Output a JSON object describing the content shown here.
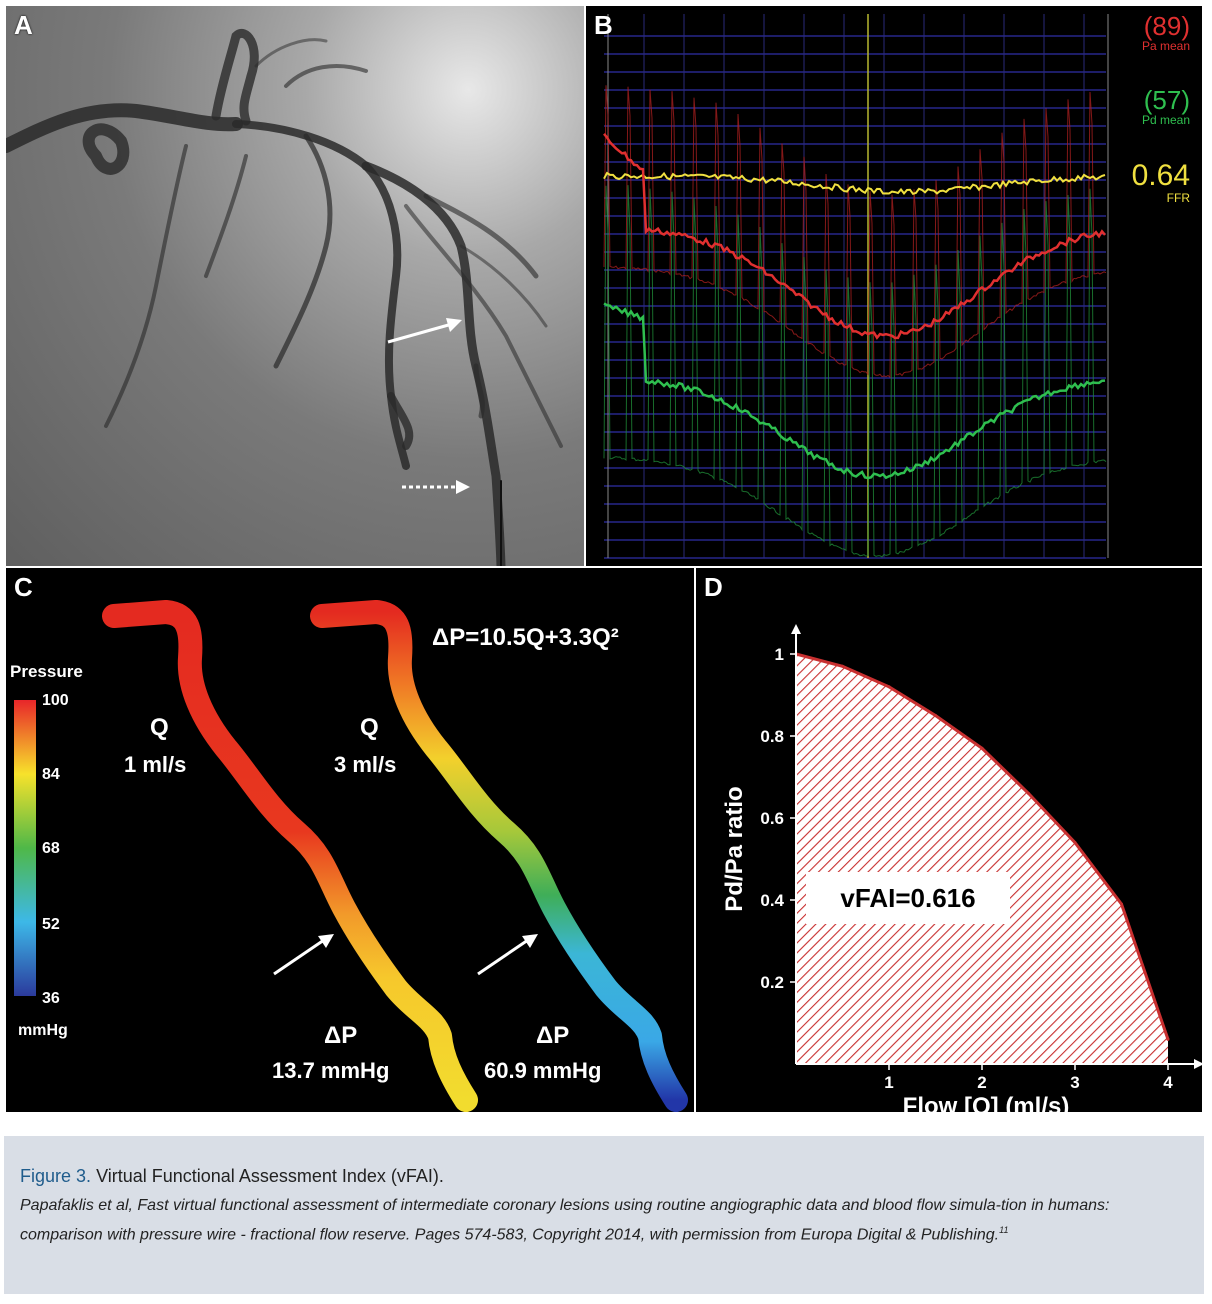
{
  "figure": {
    "panels": {
      "a": {
        "label": "A"
      },
      "b": {
        "label": "B",
        "pa_value": "(89)",
        "pa_label": "Pa mean",
        "pd_value": "(57)",
        "pd_label": "Pd mean",
        "ffr_value": "0.64",
        "ffr_label": "FFR",
        "colors": {
          "pa": "#e03030",
          "pd": "#2fbf4f",
          "ffr": "#f0e040",
          "grid": "#3a3ad0"
        }
      },
      "c": {
        "label": "C",
        "legend_title": "Pressure",
        "legend_ticks": [
          "100",
          "84",
          "68",
          "52",
          "36"
        ],
        "legend_unit": "mmHg",
        "equation": "ΔP=10.5Q+3.3Q²",
        "left_q_label": "Q",
        "left_q_value": "1 ml/s",
        "right_q_label": "Q",
        "right_q_value": "3 ml/s",
        "left_dp_label": "ΔP",
        "left_dp_value": "13.7 mmHg",
        "right_dp_label": "ΔP",
        "right_dp_value": "60.9 mmHg"
      },
      "d": {
        "label": "D",
        "vfai_text": "vFAI=0.616",
        "fill_color": "#c83030"
      }
    }
  },
  "chart_data": {
    "type": "area",
    "xlabel": "Flow [Q] (ml/s)",
    "ylabel": "Pd/Pa ratio",
    "xlim": [
      0,
      4
    ],
    "ylim": [
      0,
      1
    ],
    "x_ticks": [
      "1",
      "2",
      "3",
      "4"
    ],
    "y_ticks": [
      "1",
      "0.8",
      "0.6",
      "0.4",
      "0.2"
    ],
    "x": [
      0,
      0.5,
      1,
      1.5,
      2,
      2.5,
      3,
      3.5,
      4
    ],
    "y": [
      1.0,
      0.97,
      0.92,
      0.85,
      0.77,
      0.66,
      0.54,
      0.39,
      0.06
    ],
    "annotation": "vFAI=0.616"
  },
  "caption": {
    "figure_label": "Figure 3.",
    "title": "Virtual Functional Assessment Index (vFAI).",
    "body": "Papafaklis et al, Fast virtual functional assessment of intermediate coronary lesions using routine angiographic data and blood flow simula-tion in humans: comparison with pressure wire - fractional flow reserve. Pages 574-583, Copyright 2014, with permission from Europa Digital & Publishing.",
    "reference": "11"
  }
}
